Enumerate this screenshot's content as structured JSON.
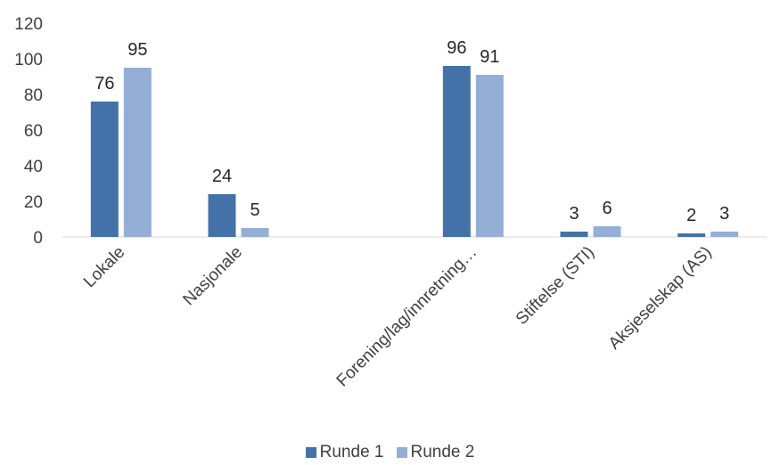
{
  "chart_data": {
    "type": "bar",
    "categories": [
      "Lokale",
      "Nasjonale",
      "",
      "Forening/lag/innretning…",
      "Stiftelse (STI)",
      "Aksjeselskap (AS)"
    ],
    "series": [
      {
        "name": "Runde 1",
        "values": [
          76,
          24,
          null,
          96,
          3,
          2
        ],
        "color": "#4472a8"
      },
      {
        "name": "Runde 2",
        "values": [
          95,
          5,
          null,
          91,
          6,
          3
        ],
        "color": "#95aed5"
      }
    ],
    "ylim": [
      0,
      120
    ],
    "yticks": [
      0,
      20,
      40,
      60,
      80,
      100,
      120
    ],
    "grid": false,
    "legend_position": "bottom"
  }
}
